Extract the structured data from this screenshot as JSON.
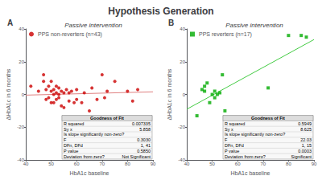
{
  "title": "Hypothesis Generation",
  "chart_data": [
    {
      "type": "scatter",
      "panel": "A",
      "subtitle": "Passive intervention",
      "xlabel": "HbA1c baseline",
      "ylabel": "ΔHbA1c in 6 months",
      "xlim": [
        40,
        90
      ],
      "ylim": [
        -40,
        40
      ],
      "xticks": [
        40,
        50,
        60,
        70,
        80,
        90
      ],
      "yticks": [
        -40,
        -20,
        0,
        20,
        40
      ],
      "grid": false,
      "legend": "upper left",
      "series": [
        {
          "name": "PPS non-reverters (n=43)",
          "type": "scatter",
          "marker": "circle",
          "color": "#cc0000",
          "x": [
            42,
            45,
            47,
            47,
            48,
            48,
            49,
            49,
            50,
            50,
            50,
            51,
            51,
            51,
            52,
            52,
            52,
            53,
            53,
            53,
            54,
            54,
            55,
            55,
            56,
            57,
            57,
            58,
            59,
            60,
            60,
            62,
            63,
            65,
            66,
            68,
            70,
            71,
            72,
            75,
            80,
            82,
            84
          ],
          "values": [
            5,
            2,
            8,
            12,
            3,
            -3,
            5,
            -2,
            2,
            -5,
            8,
            0,
            3,
            -5,
            1,
            -3,
            5,
            0,
            -2,
            4,
            2,
            -7,
            1,
            -8,
            3,
            1,
            -4,
            2,
            -5,
            3,
            -3,
            -5,
            1,
            -10,
            4,
            -3,
            12,
            -2,
            2,
            8,
            2,
            -4,
            3
          ]
        },
        {
          "type": "line",
          "line_style": "solid",
          "color": "#e08080",
          "x": [
            40,
            90
          ],
          "values": [
            -0.4,
            1.6
          ]
        }
      ],
      "table": {
        "title": "Goodness of Fit",
        "rows": [
          [
            "R squared",
            "0.007335"
          ],
          [
            "Sy x",
            "5.858"
          ],
          [
            "Is slope significantly non-zero?"
          ],
          [
            "F",
            "0.3030"
          ],
          [
            "DFn, DFd",
            "1, 41"
          ],
          [
            "P value",
            "0.5850"
          ],
          [
            "Deviation from zero?",
            "Not Significant"
          ]
        ]
      }
    },
    {
      "type": "scatter",
      "panel": "B",
      "subtitle": "Passive intervention",
      "xlabel": "HbA1c baseline",
      "ylabel": "ΔHbA1c in 6 months",
      "xlim": [
        40,
        90
      ],
      "ylim": [
        -40,
        40
      ],
      "xticks": [
        40,
        50,
        60,
        70,
        80,
        90
      ],
      "yticks": [
        -40,
        -20,
        0,
        20,
        40
      ],
      "grid": false,
      "legend": "upper left",
      "series": [
        {
          "name": "PPS reverters (n=17)",
          "type": "scatter",
          "marker": "square",
          "color": "#00aa00",
          "x": [
            44,
            46,
            47,
            47,
            48,
            49,
            50,
            51,
            51,
            52,
            53,
            54,
            55,
            72,
            80,
            85,
            87
          ],
          "values": [
            -13,
            3,
            5,
            2,
            7,
            -5,
            0,
            2,
            -2,
            0,
            1,
            12,
            -10,
            4,
            36,
            36,
            35
          ]
        },
        {
          "type": "line",
          "line_style": "solid",
          "color": "#44cc44",
          "x": [
            40,
            90
          ],
          "values": [
            -9,
            33.5
          ]
        }
      ],
      "table": {
        "title": "Goodness of Fit",
        "rows": [
          [
            "R squared",
            "0.5949"
          ],
          [
            "Sy x",
            "8.625"
          ],
          [
            "Is slope significantly non-zero?"
          ],
          [
            "F",
            "22.03"
          ],
          [
            "DFn, DFd",
            "1, 15"
          ],
          [
            "P value",
            "0.0003"
          ],
          [
            "Deviation from zero?",
            "Significant"
          ]
        ]
      }
    }
  ]
}
